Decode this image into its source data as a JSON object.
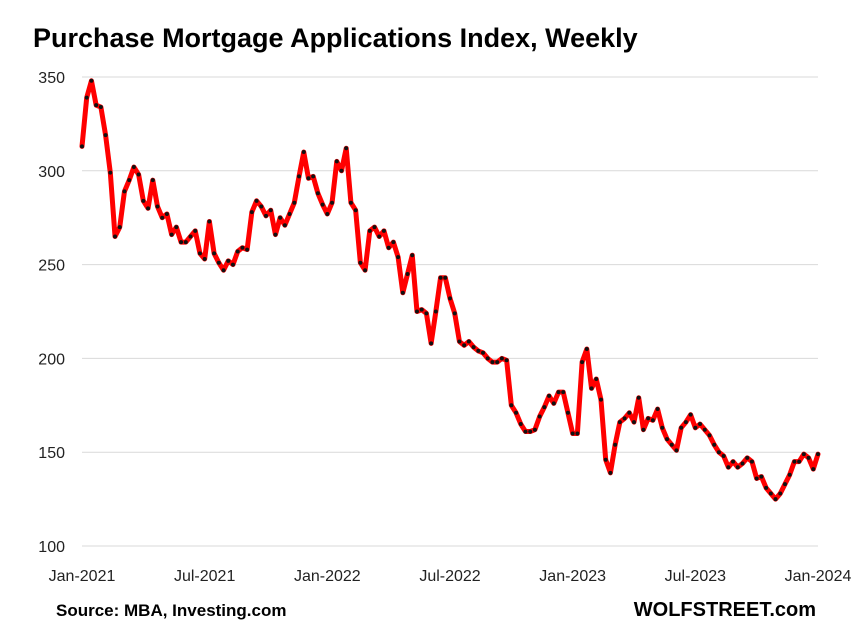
{
  "title": "Purchase Mortgage Applications Index, Weekly",
  "source": "Source: MBA, Investing.com",
  "brand": "WOLFSTREET.com",
  "colors": {
    "line": "#ff0000",
    "marker": "#111111",
    "grid": "#d9d9d9"
  },
  "chart_data": {
    "type": "line",
    "title": "Purchase Mortgage Applications Index, Weekly",
    "ylim": [
      100,
      350
    ],
    "yticks": [
      100,
      150,
      200,
      250,
      300,
      350
    ],
    "xlim": [
      0,
      156
    ],
    "xtick_labels": [
      {
        "x": 0,
        "label": "Jan-2021"
      },
      {
        "x": 26,
        "label": "Jul-2021"
      },
      {
        "x": 52,
        "label": "Jan-2022"
      },
      {
        "x": 78,
        "label": "Jul-2022"
      },
      {
        "x": 104,
        "label": "Jan-2023"
      },
      {
        "x": 130,
        "label": "Jul-2023"
      },
      {
        "x": 156,
        "label": "Jan-2024"
      }
    ],
    "grid": true,
    "series": [
      {
        "x_unit": "week",
        "values": [
          313,
          339,
          348,
          335,
          334,
          319,
          299,
          265,
          270,
          289,
          295,
          302,
          298,
          284,
          280,
          295,
          281,
          275,
          277,
          266,
          270,
          262,
          262,
          265,
          268,
          256,
          253,
          273,
          256,
          251,
          247,
          252,
          250,
          257,
          259,
          258,
          278,
          284,
          281,
          276,
          279,
          266,
          275,
          271,
          277,
          283,
          297,
          310,
          296,
          297,
          288,
          282,
          277,
          283,
          305,
          300,
          312,
          283,
          279,
          251,
          247,
          268,
          270,
          265,
          268,
          259,
          262,
          254,
          235,
          245,
          255,
          225,
          226,
          224,
          208,
          225,
          243,
          243,
          232,
          224,
          209,
          207,
          209,
          206,
          204,
          203,
          200,
          198,
          198,
          200,
          199,
          175,
          171,
          165,
          161,
          161,
          162,
          169,
          174,
          180,
          176,
          182,
          182,
          171,
          160,
          160,
          198,
          205,
          184,
          189,
          178,
          146,
          139,
          154,
          166,
          168,
          171,
          166,
          179,
          162,
          168,
          167,
          173,
          163,
          157,
          154,
          151,
          163,
          166,
          170,
          163,
          165,
          162,
          159,
          154,
          150,
          148,
          142,
          145,
          142,
          144,
          147,
          145,
          136,
          137,
          131,
          128,
          125,
          128,
          133,
          138,
          145,
          145,
          149,
          147,
          141,
          149
        ]
      }
    ]
  }
}
